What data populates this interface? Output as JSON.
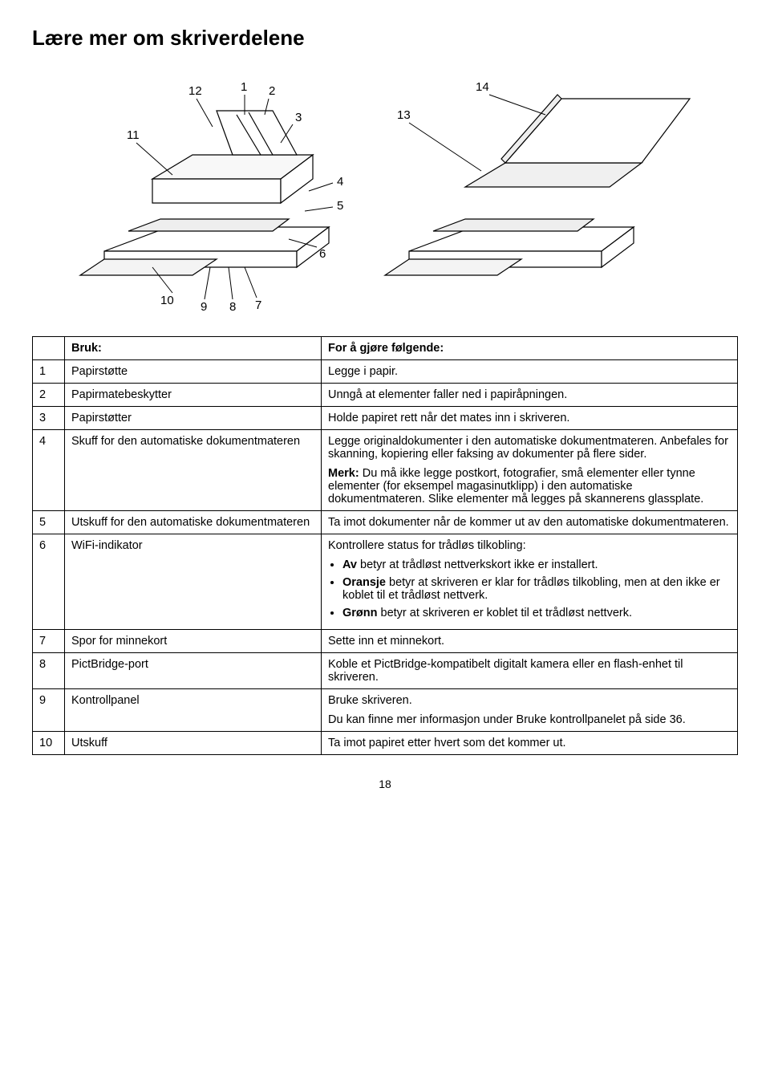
{
  "title": "Lære mer om skriverdelene",
  "pageNumber": "18",
  "diagram": {
    "callouts": [
      "1",
      "2",
      "3",
      "4",
      "5",
      "6",
      "7",
      "8",
      "9",
      "10",
      "11",
      "12",
      "13",
      "14"
    ]
  },
  "table": {
    "headers": {
      "use": "Bruk:",
      "purpose": "For å gjøre følgende:"
    },
    "rows": [
      {
        "num": "1",
        "name": "Papirstøtte",
        "desc_plain": "Legge i papir."
      },
      {
        "num": "2",
        "name": "Papirmatebeskytter",
        "desc_plain": "Unngå at elementer faller ned i papiråpningen."
      },
      {
        "num": "3",
        "name": "Papirstøtter",
        "desc_plain": "Holde papiret rett når det mates inn i skriveren."
      },
      {
        "num": "4",
        "name": "Skuff for den automatiske dokumentmateren",
        "desc_paras": [
          "Legge originaldokumenter i den automatiske dokumentmateren. Anbefales for skanning, kopiering eller faksing av dokumenter på flere sider.",
          "<b>Merk:</b> Du må ikke legge postkort, fotografier, små elementer eller tynne elementer (for eksempel magasinutklipp) i den automatiske dokumentmateren. Slike elementer må legges på skannerens glassplate."
        ]
      },
      {
        "num": "5",
        "name": "Utskuff for den automatiske dokumentmateren",
        "desc_plain": "Ta imot dokumenter når de kommer ut av den automatiske dokumentmateren."
      },
      {
        "num": "6",
        "name": "WiFi-indikator",
        "desc_lead": "Kontrollere status for trådløs tilkobling:",
        "desc_bullets": [
          "<b>Av</b> betyr at trådløst nettverkskort ikke er installert.",
          "<b>Oransje</b> betyr at skriveren er klar for trådløs tilkobling, men at den ikke er koblet til et trådløst nettverk.",
          "<b>Grønn</b> betyr at skriveren er koblet til et trådløst nettverk."
        ]
      },
      {
        "num": "7",
        "name": "Spor for minnekort",
        "desc_plain": "Sette inn et minnekort."
      },
      {
        "num": "8",
        "name": "PictBridge-port",
        "desc_plain": "Koble et PictBridge-kompatibelt digitalt kamera eller en flash-enhet til skriveren."
      },
      {
        "num": "9",
        "name": "Kontrollpanel",
        "desc_paras": [
          "Bruke skriveren.",
          "Du kan finne mer informasjon under Bruke kontrollpanelet på side 36."
        ]
      },
      {
        "num": "10",
        "name": "Utskuff",
        "desc_plain": "Ta imot papiret etter hvert som det kommer ut."
      }
    ]
  }
}
